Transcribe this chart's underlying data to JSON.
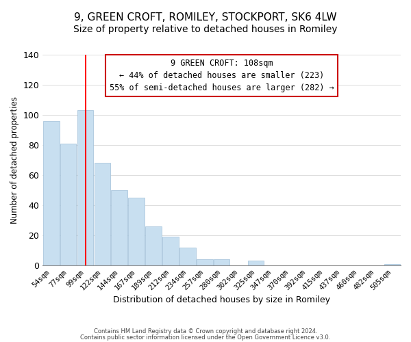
{
  "title": "9, GREEN CROFT, ROMILEY, STOCKPORT, SK6 4LW",
  "subtitle": "Size of property relative to detached houses in Romiley",
  "xlabel": "Distribution of detached houses by size in Romiley",
  "ylabel": "Number of detached properties",
  "bar_labels": [
    "54sqm",
    "77sqm",
    "99sqm",
    "122sqm",
    "144sqm",
    "167sqm",
    "189sqm",
    "212sqm",
    "234sqm",
    "257sqm",
    "280sqm",
    "302sqm",
    "325sqm",
    "347sqm",
    "370sqm",
    "392sqm",
    "415sqm",
    "437sqm",
    "460sqm",
    "482sqm",
    "505sqm"
  ],
  "bar_values": [
    96,
    81,
    103,
    68,
    50,
    45,
    26,
    19,
    12,
    4,
    4,
    0,
    3,
    0,
    0,
    0,
    0,
    0,
    0,
    0,
    1
  ],
  "bar_color": "#c8dff0",
  "bar_edge_color": "#a0c0d8",
  "vline_x": 2,
  "vline_color": "#ff0000",
  "annotation_title": "9 GREEN CROFT: 108sqm",
  "annotation_line1": "← 44% of detached houses are smaller (223)",
  "annotation_line2": "55% of semi-detached houses are larger (282) →",
  "ylim": [
    0,
    140
  ],
  "yticks": [
    0,
    20,
    40,
    60,
    80,
    100,
    120,
    140
  ],
  "footnote1": "Contains HM Land Registry data © Crown copyright and database right 2024.",
  "footnote2": "Contains public sector information licensed under the Open Government Licence v3.0.",
  "title_fontsize": 11,
  "subtitle_fontsize": 10,
  "background_color": "#ffffff"
}
